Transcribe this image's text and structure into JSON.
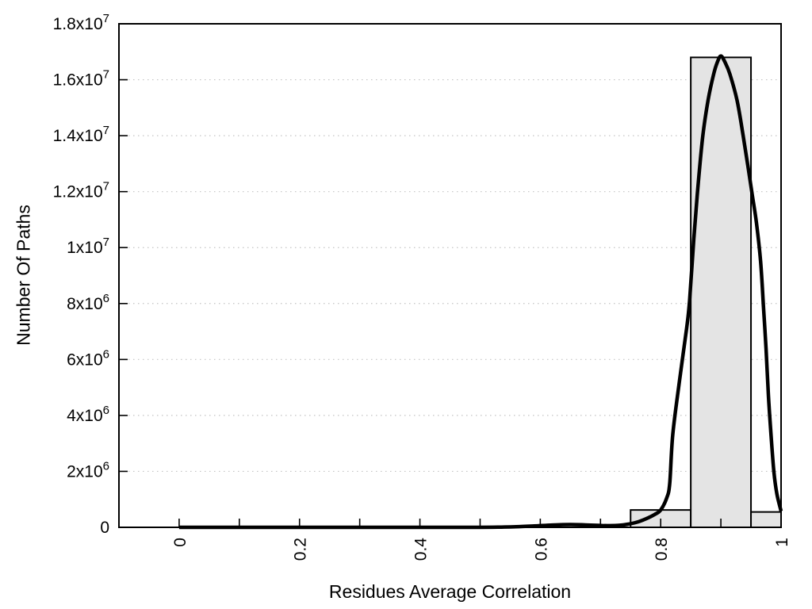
{
  "chart_data": {
    "type": "bar",
    "subtype": "histogram_with_density_curve",
    "title": "",
    "xlabel": "Residues Average Correlation",
    "ylabel": "Number Of Paths",
    "xlim": [
      -0.1,
      1.0
    ],
    "ylim": [
      0,
      18000000
    ],
    "grid": "horizontal-dotted",
    "legend_position": "none",
    "x_tick_label_rotation": -90,
    "x_ticks": [
      {
        "value": 0.0,
        "label": "0"
      },
      {
        "value": 0.1,
        "label": ""
      },
      {
        "value": 0.2,
        "label": "0.2"
      },
      {
        "value": 0.3,
        "label": ""
      },
      {
        "value": 0.4,
        "label": "0.4"
      },
      {
        "value": 0.5,
        "label": ""
      },
      {
        "value": 0.6,
        "label": "0.6"
      },
      {
        "value": 0.7,
        "label": ""
      },
      {
        "value": 0.8,
        "label": "0.8"
      },
      {
        "value": 0.9,
        "label": ""
      },
      {
        "value": 1.0,
        "label": "1"
      }
    ],
    "y_ticks": [
      {
        "value": 0,
        "mantissa": "0",
        "exp": ""
      },
      {
        "value": 2000000,
        "mantissa": "2x10",
        "exp": "6"
      },
      {
        "value": 4000000,
        "mantissa": "4x10",
        "exp": "6"
      },
      {
        "value": 6000000,
        "mantissa": "6x10",
        "exp": "6"
      },
      {
        "value": 8000000,
        "mantissa": "8x10",
        "exp": "6"
      },
      {
        "value": 10000000,
        "mantissa": "1x10",
        "exp": "7"
      },
      {
        "value": 12000000,
        "mantissa": "1.2x10",
        "exp": "7"
      },
      {
        "value": 14000000,
        "mantissa": "1.4x10",
        "exp": "7"
      },
      {
        "value": 16000000,
        "mantissa": "1.6x10",
        "exp": "7"
      },
      {
        "value": 18000000,
        "mantissa": "1.8x10",
        "exp": "7"
      }
    ],
    "bars": [
      {
        "x0": 0.75,
        "x1": 0.85,
        "value": 620000
      },
      {
        "x0": 0.85,
        "x1": 0.95,
        "value": 16800000
      },
      {
        "x0": 0.95,
        "x1": 1.05,
        "value": 550000
      }
    ],
    "curve_points": [
      [
        0.0,
        0
      ],
      [
        0.05,
        0
      ],
      [
        0.1,
        0
      ],
      [
        0.15,
        0
      ],
      [
        0.2,
        0
      ],
      [
        0.25,
        0
      ],
      [
        0.3,
        0
      ],
      [
        0.35,
        0
      ],
      [
        0.4,
        0
      ],
      [
        0.45,
        0
      ],
      [
        0.5,
        0
      ],
      [
        0.53,
        6000
      ],
      [
        0.56,
        20000
      ],
      [
        0.59,
        48000
      ],
      [
        0.62,
        82000
      ],
      [
        0.65,
        100000
      ],
      [
        0.675,
        86000
      ],
      [
        0.7,
        66000
      ],
      [
        0.715,
        60000
      ],
      [
        0.73,
        70000
      ],
      [
        0.745,
        110000
      ],
      [
        0.76,
        180000
      ],
      [
        0.775,
        300000
      ],
      [
        0.79,
        460000
      ],
      [
        0.8,
        620000
      ],
      [
        0.81,
        1050000
      ],
      [
        0.815,
        1560000
      ],
      [
        0.82,
        3300000
      ],
      [
        0.831,
        5200000
      ],
      [
        0.843,
        7100000
      ],
      [
        0.848,
        8100000
      ],
      [
        0.855,
        10300000
      ],
      [
        0.862,
        12200000
      ],
      [
        0.87,
        14000000
      ],
      [
        0.879,
        15300000
      ],
      [
        0.888,
        16200000
      ],
      [
        0.894,
        16620000
      ],
      [
        0.9,
        16850000
      ],
      [
        0.907,
        16620000
      ],
      [
        0.915,
        16200000
      ],
      [
        0.927,
        15250000
      ],
      [
        0.937,
        14000000
      ],
      [
        0.945,
        12900000
      ],
      [
        0.952,
        11900000
      ],
      [
        0.959,
        10900000
      ],
      [
        0.966,
        9500000
      ],
      [
        0.971,
        7800000
      ],
      [
        0.975,
        6400000
      ],
      [
        0.979,
        4700000
      ],
      [
        0.983,
        3400000
      ],
      [
        0.988,
        2000000
      ],
      [
        0.993,
        1200000
      ],
      [
        1.0,
        580000
      ]
    ],
    "colors": {
      "background": "#ffffff",
      "bar_fill": "#e4e4e4",
      "bar_stroke": "#000000",
      "curve": "#000000",
      "grid": "#c3c3c3",
      "axis": "#000000",
      "text": "#000000"
    }
  }
}
